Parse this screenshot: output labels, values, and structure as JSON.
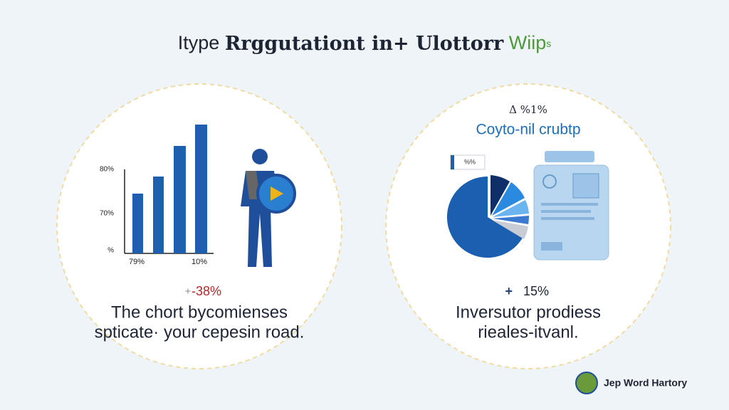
{
  "header": {
    "title_parts": [
      "Itype",
      "Rrggutationt in+ Ulottorr",
      "Wiip",
      "s"
    ]
  },
  "panels": [
    {
      "axis_labels": [
        "80%",
        "70%",
        "%"
      ],
      "x_labels": [
        "79%",
        "10%"
      ],
      "stat": "-38%",
      "stat_icon": "+",
      "caption": [
        "The chort bycomienses",
        "spticate· your cepesin road."
      ]
    },
    {
      "top_label": "Δ %1%",
      "subtitle": "Coyto-nil crubtp",
      "legend_label": "%%",
      "stat": "15%",
      "stat_icon": "+",
      "caption": [
        "Inversutor prodiess",
        "rieales-itvanl."
      ]
    }
  ],
  "footer": {
    "logo_text": "Jep Word Hartory"
  }
}
